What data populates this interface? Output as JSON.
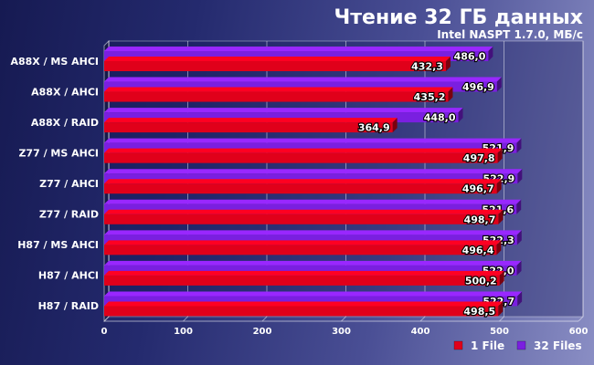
{
  "chart_data": {
    "type": "bar",
    "orientation": "horizontal",
    "title": "Чтение 32 ГБ данных",
    "subtitle": "Intel NASPT 1.7.0, МБ/с",
    "categories": [
      "A88X / MS AHCI",
      "A88X / AHCI",
      "A88X / RAID",
      "Z77 / MS AHCI",
      "Z77 / AHCI",
      "Z77 / RAID",
      "H87 / MS AHCI",
      "H87 / AHCI",
      "H87 / RAID"
    ],
    "series": [
      {
        "name": "32 Files",
        "color": "#7a1fe0",
        "values": [
          486.0,
          496.9,
          448.0,
          521.9,
          522.9,
          521.6,
          522.3,
          522.0,
          522.7
        ],
        "labels": [
          "486,0",
          "496,9",
          "448,0",
          "521,9",
          "522,9",
          "521,6",
          "522,3",
          "522,0",
          "522,7"
        ]
      },
      {
        "name": "1 File",
        "color": "#e0001a",
        "values": [
          432.3,
          435.2,
          364.9,
          497.8,
          496.7,
          498.7,
          496.4,
          500.2,
          498.5
        ],
        "labels": [
          "432,3",
          "435,2",
          "364,9",
          "497,8",
          "496,7",
          "498,7",
          "496,4",
          "500,2",
          "498,5"
        ]
      }
    ],
    "xlim": [
      0,
      600
    ],
    "xticks": [
      0,
      100,
      200,
      300,
      400,
      500,
      600
    ],
    "grid": true,
    "legend_position": "bottom-right",
    "legend_order": [
      "1 File",
      "32 Files"
    ]
  }
}
